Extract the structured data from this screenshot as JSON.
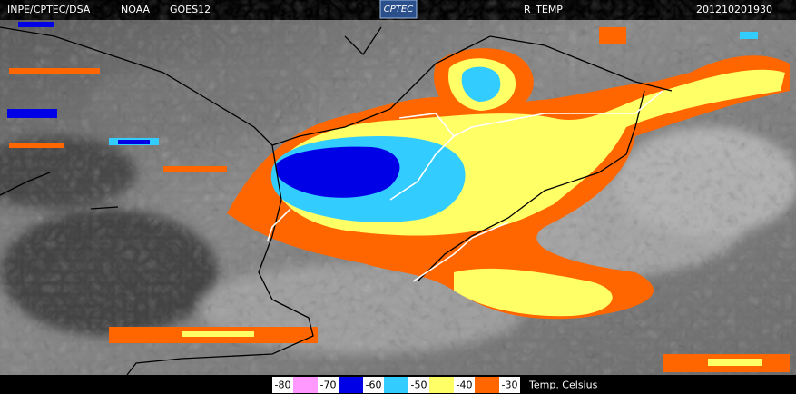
{
  "header": {
    "source": "INPE/CPTEC/DSA",
    "agency": "NOAA",
    "satellite": "GOES12",
    "logo": "CPTEC",
    "product": "R_TEMP",
    "timestamp": "201210201930"
  },
  "legend": {
    "items": [
      {
        "label": "-80",
        "color": "#ff99ff"
      },
      {
        "label": "-70",
        "color": "#0000e6"
      },
      {
        "label": "-60",
        "color": "#33ccff"
      },
      {
        "label": "-50",
        "color": "#ffff66"
      },
      {
        "label": "-40",
        "color": "#ff6600"
      },
      {
        "label": "-30",
        "color": null
      }
    ],
    "unit": "Temp. Celsius"
  }
}
